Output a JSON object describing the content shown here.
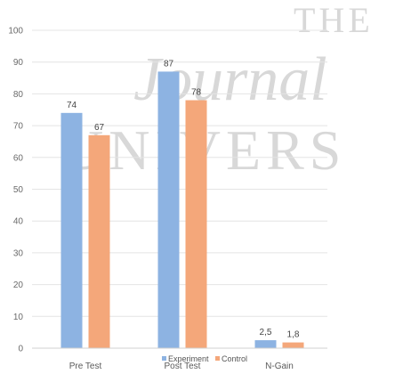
{
  "colors": {
    "experiment": "#8db3e2",
    "control": "#f4a77a",
    "grid": "#e4e4e4",
    "watermark": "#d6d6d6"
  },
  "watermark": {
    "line1": "THE",
    "line2": "UNIVERS",
    "script": "Journal"
  },
  "chart_data": {
    "type": "bar",
    "categories": [
      "Pre Test",
      "Post Test",
      "N-Gain"
    ],
    "series": [
      {
        "name": "Experiment",
        "values": [
          74,
          87,
          2.5
        ],
        "labels": [
          "74",
          "87",
          "2,5"
        ]
      },
      {
        "name": "Control",
        "values": [
          67,
          78,
          1.8
        ],
        "labels": [
          "67",
          "78",
          "1,8"
        ]
      }
    ],
    "title": "",
    "xlabel": "",
    "ylabel": "",
    "ylim": [
      0,
      100
    ],
    "yticks": [
      0,
      10,
      20,
      30,
      40,
      50,
      60,
      70,
      80,
      90,
      100
    ],
    "grid": true,
    "legend": "bottom-center"
  }
}
